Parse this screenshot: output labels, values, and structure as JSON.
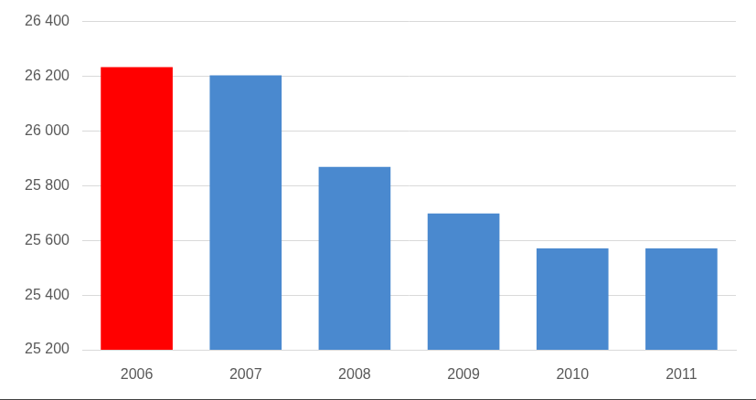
{
  "chart_data": {
    "type": "bar",
    "categories": [
      "2006",
      "2007",
      "2008",
      "2009",
      "2010",
      "2011"
    ],
    "values": [
      26233,
      26203,
      25869,
      25698,
      25571,
      25571
    ],
    "colors": [
      "#ff0000",
      "#4a89cf",
      "#4a89cf",
      "#4a89cf",
      "#4a89cf",
      "#4a89cf"
    ],
    "ylim": [
      25200,
      26400
    ],
    "yticks": [
      {
        "value": 25200,
        "label": "25 200"
      },
      {
        "value": 25400,
        "label": "25 400"
      },
      {
        "value": 25600,
        "label": "25 600"
      },
      {
        "value": 25800,
        "label": "25 800"
      },
      {
        "value": 26000,
        "label": "26 000"
      },
      {
        "value": 26200,
        "label": "26 200"
      },
      {
        "value": 26400,
        "label": "26 400"
      }
    ],
    "grid": true
  }
}
